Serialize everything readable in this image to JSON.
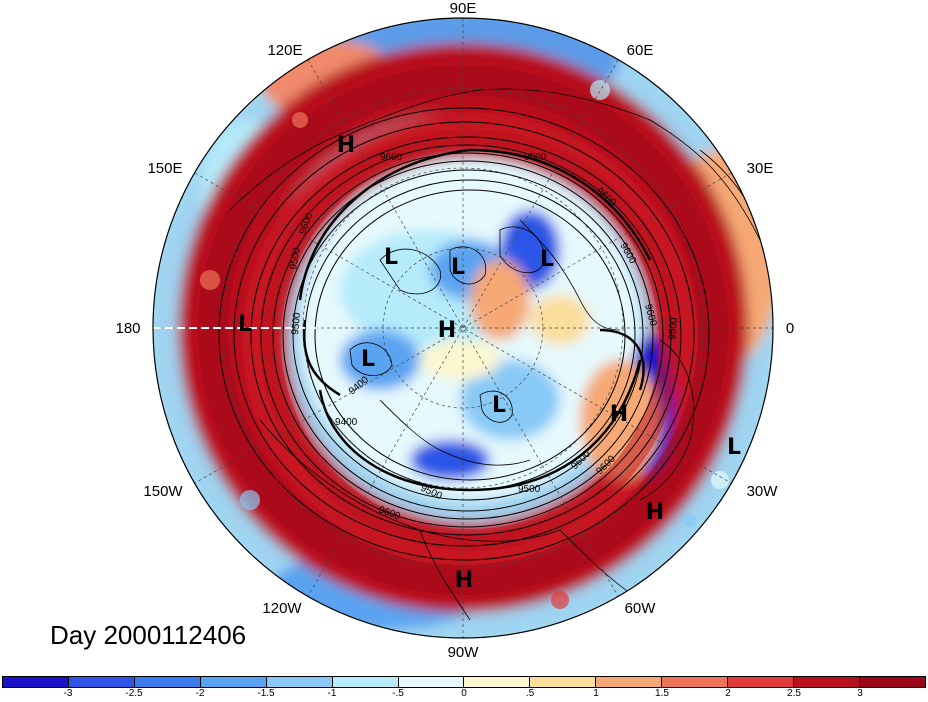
{
  "title": "Day 2000112406",
  "longitude_labels": [
    "90E",
    "60E",
    "30E",
    "0",
    "30W",
    "60W",
    "90W",
    "120W",
    "150W",
    "180",
    "150E",
    "120E"
  ],
  "pressure_centers": [
    {
      "mark": "H",
      "label": "high-120e"
    },
    {
      "mark": "L",
      "label": "low-180"
    },
    {
      "mark": "L",
      "label": "low-inner-1"
    },
    {
      "mark": "L",
      "label": "low-inner-2"
    },
    {
      "mark": "L",
      "label": "low-inner-3"
    },
    {
      "mark": "H",
      "label": "high-pole"
    },
    {
      "mark": "L",
      "label": "low-inner-4"
    },
    {
      "mark": "L",
      "label": "low-inner-5"
    },
    {
      "mark": "H",
      "label": "high-atlantic"
    },
    {
      "mark": "L",
      "label": "low-30w"
    },
    {
      "mark": "H",
      "label": "high-60w"
    },
    {
      "mark": "H",
      "label": "high-90w"
    }
  ],
  "contour_labels": [
    "9600",
    "9500",
    "9600",
    "9500",
    "9400",
    "9500",
    "9600",
    "9600",
    "9500",
    "9600",
    "9500",
    "9600",
    "9400",
    "9600",
    "9500",
    "9600"
  ],
  "colorbar": {
    "ticks": [
      "-3",
      "-2.5",
      "-2",
      "-1.5",
      "-1",
      "-.5",
      "0",
      ".5",
      "1",
      "1.5",
      "2",
      "2.5",
      "3"
    ],
    "colors": [
      "#1c13c8",
      "#2a55e6",
      "#3c7ded",
      "#5aa3f1",
      "#88c9f6",
      "#b6ebfb",
      "#e6f9fd",
      "#fdf7cf",
      "#fbdd9c",
      "#f6a874",
      "#ee7459",
      "#e13a3a",
      "#b8101e",
      "#9a0818"
    ]
  }
}
